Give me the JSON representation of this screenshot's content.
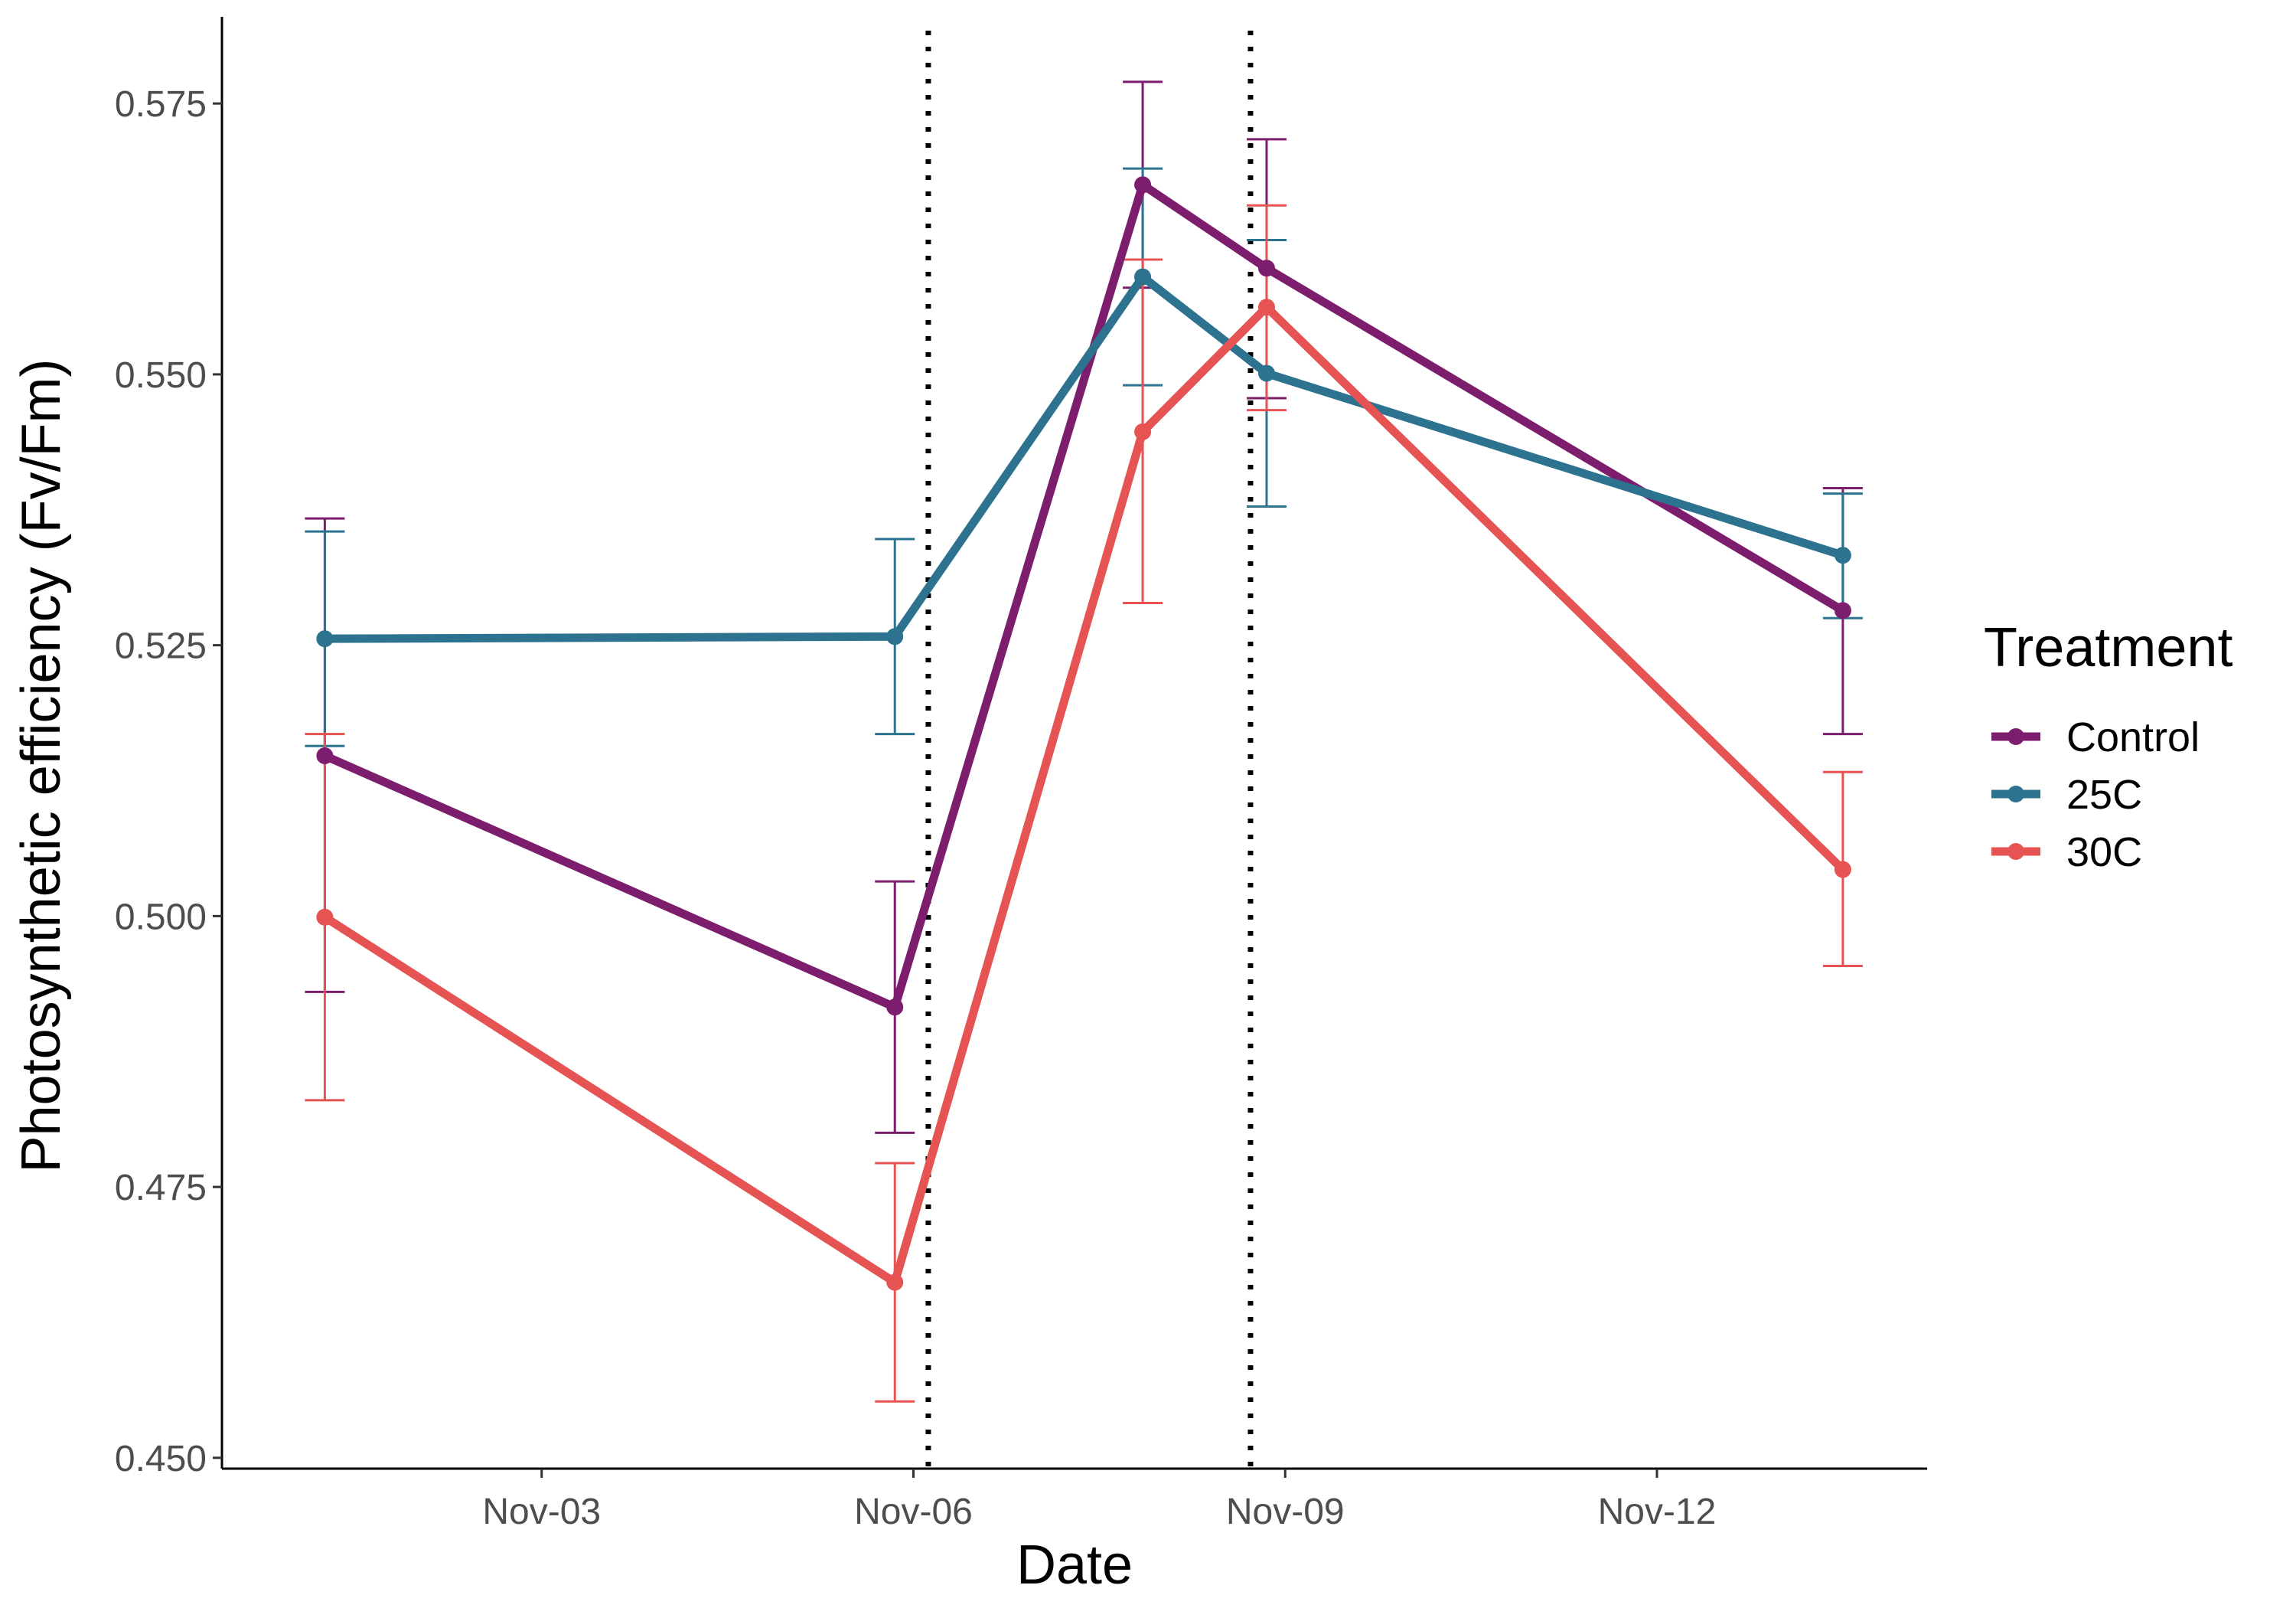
{
  "chart_data": {
    "type": "line",
    "title": "",
    "xlabel": "Date",
    "ylabel": "Photosynthetic efficiency (Fv/Fm)",
    "ylim": [
      0.449,
      0.583
    ],
    "xlim": [
      -0.58,
      13.18
    ],
    "x_ticks": [
      {
        "pos": 2,
        "label": "Nov-03"
      },
      {
        "pos": 5,
        "label": "Nov-06"
      },
      {
        "pos": 8,
        "label": "Nov-09"
      },
      {
        "pos": 11,
        "label": "Nov-12"
      }
    ],
    "y_ticks": [
      {
        "value": 0.45,
        "label": "0.450"
      },
      {
        "value": 0.475,
        "label": "0.475"
      },
      {
        "value": 0.5,
        "label": "0.500"
      },
      {
        "value": 0.525,
        "label": "0.525"
      },
      {
        "value": 0.55,
        "label": "0.550"
      },
      {
        "value": 0.575,
        "label": "0.575"
      }
    ],
    "vlines": [
      5.12,
      7.72
    ],
    "grid": false,
    "legend": {
      "title": "Treatment",
      "position": "right"
    },
    "series": [
      {
        "name": "Control",
        "color": "#7D1D6E",
        "points": [
          {
            "x": 0.25,
            "y": 0.5148,
            "lo": 0.493,
            "hi": 0.5367
          },
          {
            "x": 4.85,
            "y": 0.4916,
            "lo": 0.48,
            "hi": 0.5032
          },
          {
            "x": 6.85,
            "y": 0.5675,
            "lo": 0.558,
            "hi": 0.577
          },
          {
            "x": 7.85,
            "y": 0.5598,
            "lo": 0.5478,
            "hi": 0.5717
          },
          {
            "x": 12.5,
            "y": 0.5282,
            "lo": 0.5168,
            "hi": 0.5395
          }
        ]
      },
      {
        "name": "25C",
        "color": "#2D7390",
        "points": [
          {
            "x": 0.25,
            "y": 0.5256,
            "lo": 0.5157,
            "hi": 0.5355
          },
          {
            "x": 4.85,
            "y": 0.5258,
            "lo": 0.5168,
            "hi": 0.5348
          },
          {
            "x": 6.85,
            "y": 0.559,
            "lo": 0.549,
            "hi": 0.569
          },
          {
            "x": 7.85,
            "y": 0.5501,
            "lo": 0.5378,
            "hi": 0.5624
          },
          {
            "x": 12.5,
            "y": 0.5333,
            "lo": 0.5275,
            "hi": 0.539
          }
        ]
      },
      {
        "name": "30C",
        "color": "#E55353",
        "points": [
          {
            "x": 0.25,
            "y": 0.4999,
            "lo": 0.483,
            "hi": 0.5168
          },
          {
            "x": 4.85,
            "y": 0.4662,
            "lo": 0.4552,
            "hi": 0.4772
          },
          {
            "x": 6.85,
            "y": 0.5447,
            "lo": 0.5289,
            "hi": 0.5606
          },
          {
            "x": 7.85,
            "y": 0.5562,
            "lo": 0.5467,
            "hi": 0.5656
          },
          {
            "x": 12.5,
            "y": 0.5043,
            "lo": 0.4954,
            "hi": 0.5133
          }
        ]
      }
    ]
  }
}
